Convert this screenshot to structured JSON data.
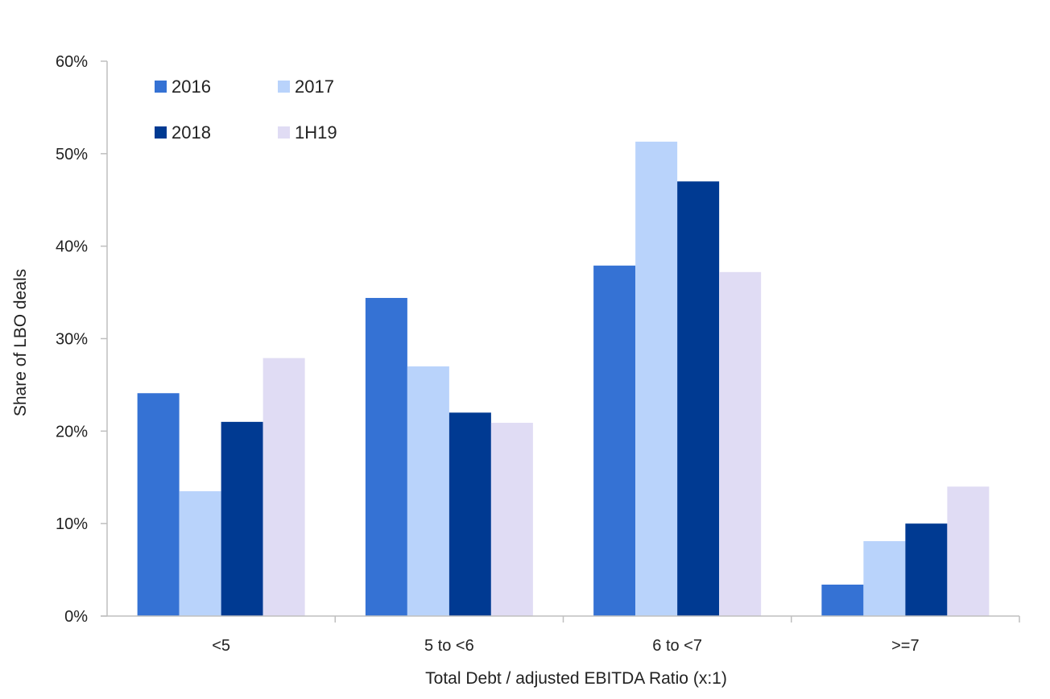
{
  "chart_data": {
    "type": "bar",
    "title": "",
    "xlabel": "Total Debt / adjusted EBITDA Ratio (x:1)",
    "ylabel": "Share of LBO deals",
    "categories": [
      "<5",
      "5 to <6",
      "6 to <7",
      ">=7"
    ],
    "ylim": [
      0,
      60
    ],
    "yticks": [
      0,
      10,
      20,
      30,
      40,
      50,
      60
    ],
    "ytick_labels": [
      "0%",
      "10%",
      "20%",
      "30%",
      "40%",
      "50%",
      "60%"
    ],
    "grid": false,
    "legend_position": "top-left",
    "series": [
      {
        "name": "2016",
        "color": "#3572d4",
        "values": [
          24.1,
          34.4,
          37.9,
          3.4
        ]
      },
      {
        "name": "2017",
        "color": "#b9d3fb",
        "values": [
          13.5,
          27.0,
          51.3,
          8.1
        ]
      },
      {
        "name": "2018",
        "color": "#003a92",
        "values": [
          21.0,
          22.0,
          47.0,
          10.0
        ]
      },
      {
        "name": "1H19",
        "color": "#e0dcf4",
        "values": [
          27.9,
          20.9,
          37.2,
          14.0
        ]
      }
    ]
  }
}
